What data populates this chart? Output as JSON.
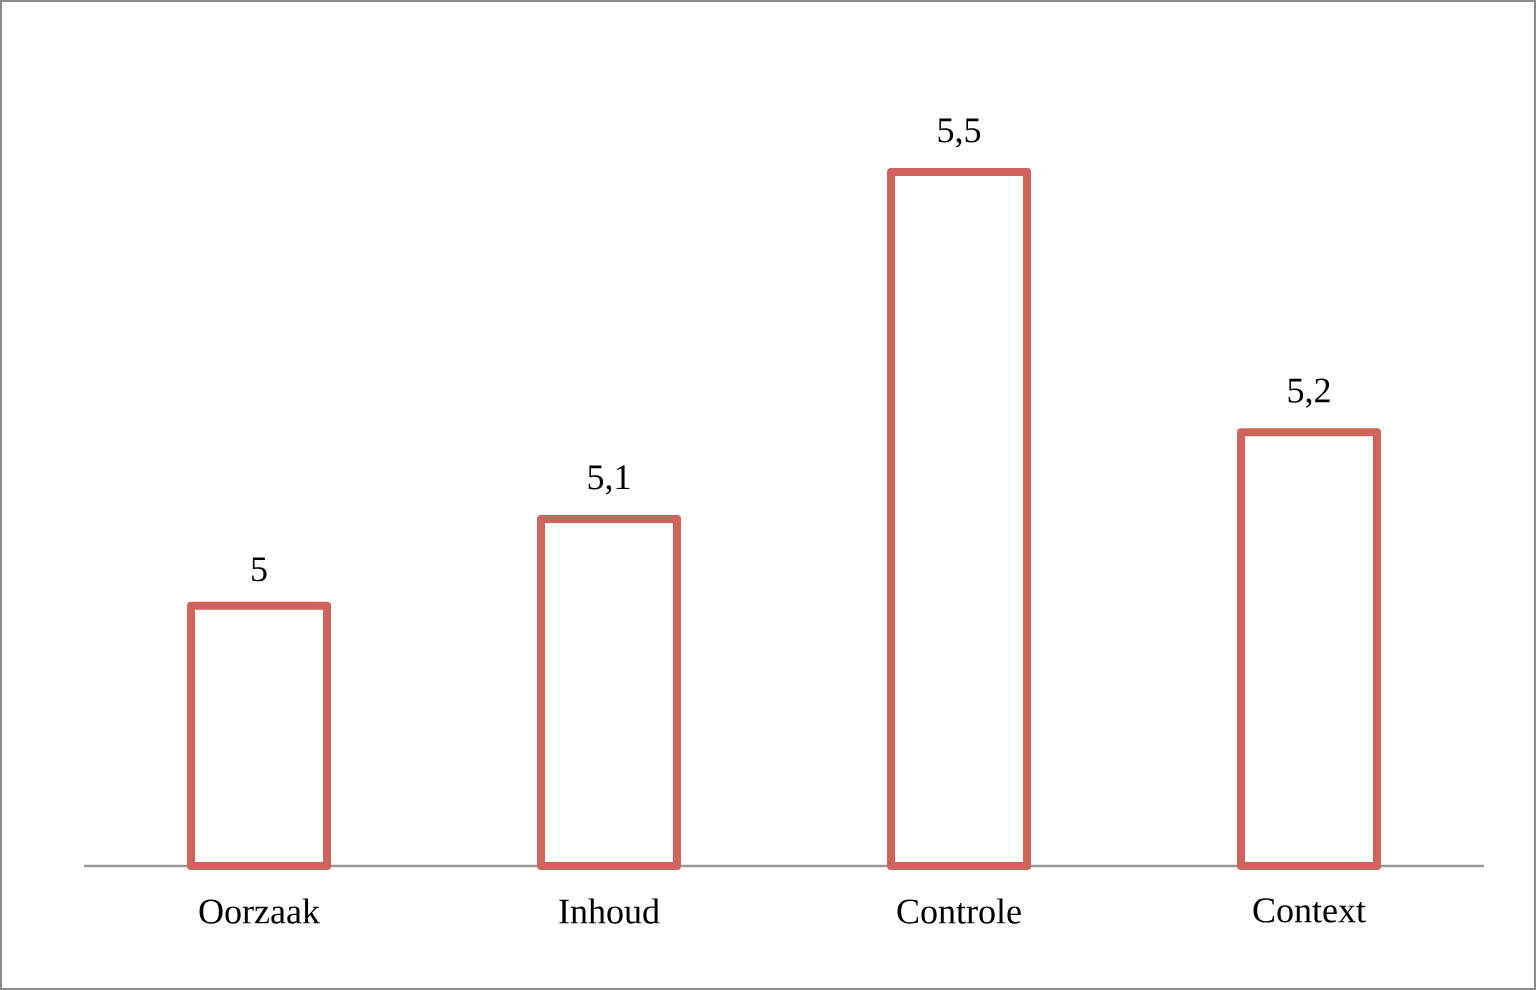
{
  "chart_data": {
    "type": "bar",
    "categories": [
      "Oorzaak",
      "Inhoud",
      "Controle",
      "Context"
    ],
    "values": [
      5,
      5.1,
      5.5,
      5.2
    ],
    "value_labels": [
      "5",
      "5,1",
      "5,5",
      "5,2"
    ],
    "color": "#d0635c",
    "ylim": [
      4.7,
      5.5
    ],
    "tick_labels": "x"
  }
}
